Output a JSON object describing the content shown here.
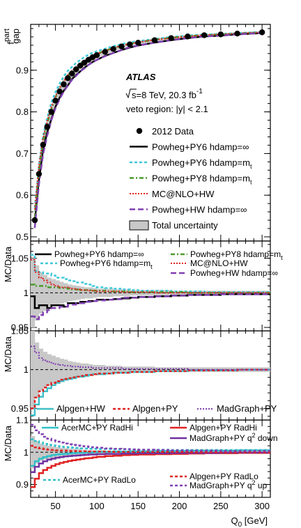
{
  "chart_data": {
    "type": "line",
    "colors": {
      "data": "#000000",
      "pwg_py6_inf": "#000000",
      "pwg_py6_mt": "#3fc8d8",
      "pwg_py8_mt": "#4a9a2a",
      "mcnlo_hw": "#e02020",
      "pwg_hw_inf": "#8040b0",
      "uncertainty": "#c8c8c8",
      "alpgen_hw": "#3fc0c8",
      "alpgen_py": "#e02020",
      "madgraph_py": "#8040b0",
      "acermc_radhi": "#30c0c8",
      "alpgen_radhi": "#e02020",
      "madgraph_q2down": "#7030a0",
      "acermc_radlo": "#30c0c8",
      "alpgen_radlo": "#e02020",
      "madgraph_q2up": "#8040b0"
    },
    "x_axis": {
      "label": "Q",
      "label_sub": "0",
      "label_unit": " [GeV]",
      "range": [
        20,
        310
      ],
      "ticks": [
        "50",
        "100",
        "150",
        "200",
        "250",
        "300"
      ]
    },
    "panels": [
      {
        "id": "main",
        "ylabel": "f",
        "ylabel_sup": "part",
        "ylabel_sub": "gap",
        "ylim": [
          0.49,
          1.01
        ],
        "ticks": [
          "0.5",
          "0.6",
          "0.7",
          "0.8",
          "0.9"
        ],
        "annotations": {
          "experiment": "ATLAS",
          "energy_pre": "s=8 TeV, 20.3 fb",
          "energy_sup": "-1",
          "region": "veto region: |y| < 2.1"
        },
        "data": {
          "name": "2012 Data",
          "x": [
            25,
            30,
            35,
            40,
            45,
            50,
            55,
            60,
            65,
            70,
            75,
            80,
            85,
            90,
            95,
            100,
            110,
            120,
            130,
            140,
            150,
            170,
            190,
            210,
            230,
            250,
            270,
            300
          ],
          "y": [
            0.54,
            0.651,
            0.721,
            0.764,
            0.8,
            0.827,
            0.849,
            0.866,
            0.881,
            0.892,
            0.902,
            0.911,
            0.918,
            0.925,
            0.931,
            0.936,
            0.944,
            0.951,
            0.957,
            0.962,
            0.966,
            0.972,
            0.977,
            0.981,
            0.984,
            0.986,
            0.988,
            0.991
          ]
        },
        "legend": [
          {
            "label": "2012 Data",
            "style": "marker",
            "color": "data"
          },
          {
            "label": "Powheg+PY6 hdamp=∞",
            "style": "solid",
            "color": "pwg_py6_inf"
          },
          {
            "label": "Powheg+PY6 hdamp=m",
            "sub": "t",
            "style": "dash-short",
            "color": "pwg_py6_mt"
          },
          {
            "label": "Powheg+PY8 hdamp=m",
            "sub": "t",
            "style": "dashdot",
            "color": "pwg_py8_mt"
          },
          {
            "label": "MC@NLO+HW",
            "style": "dotted",
            "color": "mcnlo_hw"
          },
          {
            "label": "Powheg+HW hdamp=∞",
            "style": "dash-long",
            "color": "pwg_hw_inf"
          },
          {
            "label": "Total uncertainty",
            "style": "box",
            "color": "uncertainty"
          }
        ]
      },
      {
        "id": "ratio1",
        "ylabel": "MC/Data",
        "ylim": [
          0.945,
          1.075
        ],
        "ticks": [
          "0.95",
          "1",
          "1.05"
        ],
        "bins": [
          20,
          25,
          30,
          35,
          40,
          45,
          50,
          55,
          60,
          65,
          70,
          75,
          80,
          85,
          90,
          95,
          100,
          110,
          120,
          130,
          140,
          150,
          170,
          190,
          210,
          230,
          250,
          270,
          310
        ],
        "uncertainty": [
          0.05,
          0.04,
          0.03,
          0.026,
          0.022,
          0.02,
          0.018,
          0.016,
          0.014,
          0.012,
          0.011,
          0.01,
          0.009,
          0.008,
          0.008,
          0.007,
          0.006,
          0.006,
          0.005,
          0.005,
          0.004,
          0.004,
          0.004,
          0.003,
          0.003,
          0.003,
          0.003,
          0.003
        ],
        "series": [
          {
            "name": "Powheg+PY6 hdamp=∞",
            "color": "pwg_py6_inf",
            "style": "solid",
            "values": [
              0.995,
              0.978,
              0.982,
              0.982,
              0.978,
              0.982,
              0.982,
              0.982,
              0.98,
              0.985,
              0.985,
              0.985,
              0.987,
              0.987,
              0.988,
              0.988,
              0.99,
              0.99,
              0.991,
              0.992,
              0.993,
              0.994,
              0.995,
              0.996,
              0.997,
              0.997,
              0.998,
              0.998
            ]
          },
          {
            "name": "Powheg+PY6 hdamp=m",
            "color": "pwg_py6_mt",
            "style": "dash-short",
            "values": [
              1.055,
              1.032,
              1.03,
              1.028,
              1.028,
              1.025,
              1.022,
              1.022,
              1.02,
              1.018,
              1.017,
              1.015,
              1.015,
              1.013,
              1.012,
              1.01,
              1.008,
              1.007,
              1.006,
              1.005,
              1.004,
              1.003,
              1.003,
              1.002,
              1.002,
              1.001,
              1.001,
              1.001
            ]
          },
          {
            "name": "Powheg+PY8 hdamp=m",
            "color": "pwg_py8_mt",
            "style": "dashdot",
            "values": [
              1.012,
              1.01,
              1.01,
              1.01,
              1.008,
              1.008,
              1.008,
              1.007,
              1.007,
              1.006,
              1.005,
              1.005,
              1.004,
              1.004,
              1.004,
              1.003,
              1.003,
              1.002,
              1.002,
              1.002,
              1.001,
              1.001,
              1.001,
              1.001,
              1.0,
              1.0,
              1.0,
              1.0
            ]
          },
          {
            "name": "MC@NLO+HW",
            "color": "mcnlo_hw",
            "style": "dotted",
            "values": [
              1.048,
              1.03,
              1.022,
              1.018,
              1.015,
              1.012,
              1.01,
              1.008,
              1.008,
              1.007,
              1.006,
              1.005,
              1.004,
              1.004,
              1.003,
              1.003,
              1.002,
              1.002,
              1.002,
              1.001,
              1.001,
              1.001,
              1.0,
              1.0,
              1.0,
              1.0,
              1.0,
              1.0
            ]
          },
          {
            "name": "Powheg+HW hdamp=∞",
            "color": "pwg_hw_inf",
            "style": "dash-long",
            "values": [
              0.966,
              0.962,
              0.968,
              0.972,
              0.975,
              0.978,
              0.978,
              0.98,
              0.98,
              0.983,
              0.983,
              0.985,
              0.985,
              0.987,
              0.987,
              0.988,
              0.989,
              0.99,
              0.991,
              0.993,
              0.993,
              0.994,
              0.995,
              0.996,
              0.997,
              0.997,
              0.998,
              0.998
            ]
          }
        ],
        "legend": [
          {
            "label": "Powheg+PY6 hdamp=∞",
            "style": "solid",
            "color": "pwg_py6_inf"
          },
          {
            "label": "Powheg+PY8 hdamp=m",
            "sub": "t",
            "style": "dashdot",
            "color": "pwg_py8_mt"
          },
          {
            "label": "Powheg+PY6 hdamp=m",
            "sub": "t",
            "style": "dash-short",
            "color": "pwg_py6_mt"
          },
          {
            "label": "MC@NLO+HW",
            "style": "dotted",
            "color": "mcnlo_hw"
          },
          {
            "label": "Powheg+HW  hdamp=∞",
            "style": "dash-long",
            "color": "pwg_hw_inf"
          }
        ]
      },
      {
        "id": "ratio2",
        "ylabel": "MC/Data",
        "ylim": [
          0.935,
          1.05
        ],
        "ticks": [
          "0.95",
          "1",
          "1.05"
        ],
        "bins": [
          20,
          25,
          30,
          35,
          40,
          45,
          50,
          55,
          60,
          65,
          70,
          75,
          80,
          85,
          90,
          95,
          100,
          110,
          120,
          130,
          140,
          150,
          170,
          190,
          210,
          230,
          250,
          270,
          310
        ],
        "uncertainty": [
          0.05,
          0.035,
          0.027,
          0.023,
          0.02,
          0.018,
          0.016,
          0.014,
          0.013,
          0.011,
          0.01,
          0.009,
          0.008,
          0.008,
          0.007,
          0.006,
          0.006,
          0.005,
          0.005,
          0.004,
          0.004,
          0.004,
          0.003,
          0.003,
          0.003,
          0.003,
          0.003,
          0.003
        ],
        "series": [
          {
            "name": "Alpgen+HW",
            "color": "alpgen_hw",
            "style": "solid",
            "values": [
              0.941,
              0.955,
              0.965,
              0.972,
              0.976,
              0.98,
              0.983,
              0.985,
              0.987,
              0.988,
              0.989,
              0.991,
              0.991,
              0.992,
              0.993,
              0.994,
              0.994,
              0.995,
              0.996,
              0.996,
              0.997,
              0.997,
              0.998,
              0.998,
              0.999,
              0.999,
              0.999,
              1.0
            ]
          },
          {
            "name": "Alpgen+PY",
            "color": "alpgen_py",
            "style": "dash-short",
            "values": [
              0.95,
              0.964,
              0.972,
              0.977,
              0.98,
              0.983,
              0.985,
              0.987,
              0.988,
              0.989,
              0.99,
              0.991,
              0.992,
              0.993,
              0.993,
              0.994,
              0.995,
              0.995,
              0.996,
              0.996,
              0.997,
              0.997,
              0.998,
              0.998,
              0.999,
              0.999,
              0.999,
              1.0
            ]
          },
          {
            "name": "MadGraph+PY",
            "color": "madgraph_py",
            "style": "dotted",
            "values": [
              1.03,
              1.022,
              1.015,
              1.012,
              1.01,
              1.008,
              1.007,
              1.006,
              1.005,
              1.005,
              1.004,
              1.004,
              1.003,
              1.003,
              1.003,
              1.002,
              1.002,
              1.002,
              1.002,
              1.001,
              1.001,
              1.001,
              1.001,
              1.001,
              1.0,
              1.0,
              1.0,
              1.0
            ]
          }
        ],
        "legend": [
          {
            "label": "Alpgen+HW",
            "style": "solid",
            "color": "alpgen_hw"
          },
          {
            "label": "Alpgen+PY",
            "style": "dash-short",
            "color": "alpgen_py"
          },
          {
            "label": "MadGraph+PY",
            "style": "dotted",
            "color": "madgraph_py"
          }
        ]
      },
      {
        "id": "ratio3",
        "ylabel": "MC/Data",
        "ylim": [
          0.86,
          1.1
        ],
        "ticks": [
          "0.9",
          "1",
          "1.1"
        ],
        "bins": [
          20,
          25,
          30,
          35,
          40,
          45,
          50,
          55,
          60,
          65,
          70,
          75,
          80,
          85,
          90,
          95,
          100,
          110,
          120,
          130,
          140,
          150,
          170,
          190,
          210,
          230,
          250,
          270,
          310
        ],
        "uncertainty": [
          0.05,
          0.035,
          0.027,
          0.023,
          0.02,
          0.018,
          0.016,
          0.014,
          0.013,
          0.011,
          0.01,
          0.009,
          0.008,
          0.008,
          0.007,
          0.006,
          0.006,
          0.005,
          0.005,
          0.004,
          0.004,
          0.004,
          0.003,
          0.003,
          0.003,
          0.003,
          0.003,
          0.003
        ],
        "series": [
          {
            "name": "AcerMC+PY RadHi",
            "color": "acermc_radhi",
            "style": "solid",
            "values": [
              0.958,
              0.972,
              0.98,
              0.985,
              0.988,
              0.991,
              0.993,
              0.994,
              0.995,
              0.996,
              0.997,
              0.998,
              0.998,
              0.999,
              0.999,
              1.0,
              1.001,
              1.001,
              1.002,
              1.002,
              1.003,
              1.003,
              1.004,
              1.004,
              1.005,
              1.005,
              1.005,
              1.006
            ]
          },
          {
            "name": "Alpgen+PY RadHi",
            "color": "alpgen_radhi",
            "style": "solid",
            "values": [
              0.892,
              0.918,
              0.935,
              0.945,
              0.952,
              0.958,
              0.963,
              0.967,
              0.97,
              0.973,
              0.975,
              0.977,
              0.979,
              0.981,
              0.982,
              0.984,
              0.986,
              0.988,
              0.989,
              0.991,
              0.992,
              0.993,
              0.994,
              0.995,
              0.996,
              0.997,
              0.997,
              0.998
            ]
          },
          {
            "name": "MadGraph+PY q² down",
            "color": "madgraph_q2down",
            "style": "solid",
            "values": [
              0.938,
              0.955,
              0.965,
              0.972,
              0.977,
              0.98,
              0.983,
              0.985,
              0.987,
              0.988,
              0.989,
              0.99,
              0.991,
              0.992,
              0.993,
              0.993,
              0.994,
              0.995,
              0.995,
              0.996,
              0.996,
              0.997,
              0.997,
              0.998,
              0.998,
              0.998,
              0.999,
              0.999
            ]
          },
          {
            "name": "AcerMC+PY RadLo",
            "color": "acermc_radlo",
            "style": "dash-short",
            "values": [
              1.04,
              1.035,
              1.03,
              1.026,
              1.023,
              1.021,
              1.019,
              1.017,
              1.016,
              1.015,
              1.014,
              1.013,
              1.012,
              1.012,
              1.011,
              1.011,
              1.01,
              1.01,
              1.009,
              1.009,
              1.008,
              1.008,
              1.008,
              1.007,
              1.007,
              1.007,
              1.007,
              1.007
            ]
          },
          {
            "name": "Alpgen+PY RadLo",
            "color": "alpgen_radlo",
            "style": "dash-short",
            "values": [
              1.02,
              1.015,
              1.012,
              1.01,
              1.008,
              1.007,
              1.006,
              1.005,
              1.005,
              1.004,
              1.004,
              1.003,
              1.003,
              1.003,
              1.002,
              1.002,
              1.002,
              1.002,
              1.001,
              1.001,
              1.001,
              1.001,
              1.001,
              1.001,
              1.0,
              1.0,
              1.0,
              1.0
            ]
          },
          {
            "name": "MadGraph+PY q² up",
            "color": "madgraph_q2up",
            "style": "dash-short",
            "values": [
              1.085,
              1.068,
              1.056,
              1.048,
              1.042,
              1.037,
              1.033,
              1.03,
              1.027,
              1.025,
              1.023,
              1.021,
              1.019,
              1.018,
              1.016,
              1.015,
              1.014,
              1.012,
              1.011,
              1.01,
              1.009,
              1.008,
              1.007,
              1.006,
              1.005,
              1.005,
              1.004,
              1.004
            ]
          }
        ],
        "legend": [
          {
            "label": "AcerMC+PY RadHi",
            "style": "solid",
            "color": "acermc_radhi"
          },
          {
            "label": "Alpgen+PY RadHi",
            "style": "solid",
            "color": "alpgen_radhi"
          },
          {
            "label": "MadGraph+PY q",
            "sup": "2",
            "tail": " down",
            "style": "solid",
            "color": "madgraph_q2down"
          },
          {
            "label": "AcerMC+PY RadLo",
            "style": "dash-short",
            "color": "acermc_radlo"
          },
          {
            "label": "Alpgen+PY RadLo",
            "style": "dash-short",
            "color": "alpgen_radlo"
          },
          {
            "label": "MadGraph+PY q",
            "sup": "2",
            "tail": " up",
            "style": "dash-short",
            "color": "madgraph_q2up"
          }
        ]
      }
    ]
  }
}
